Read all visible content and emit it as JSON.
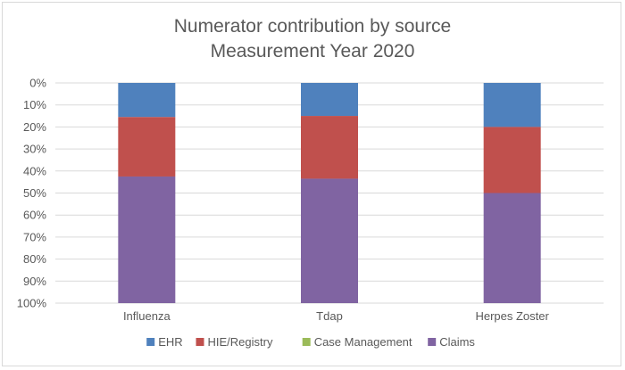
{
  "chart_data": {
    "type": "bar",
    "stacked": true,
    "percent_axis_reversed": true,
    "title_lines": [
      "Numerator contribution by source",
      "Measurement Year 2020"
    ],
    "categories": [
      "Influenza",
      "Tdap",
      "Herpes Zoster"
    ],
    "y_ticks": [
      "0%",
      "10%",
      "20%",
      "30%",
      "40%",
      "50%",
      "60%",
      "70%",
      "80%",
      "90%",
      "100%"
    ],
    "ylim": [
      0,
      100
    ],
    "grid": true,
    "legend_position": "bottom",
    "series": [
      {
        "name": "EHR",
        "color": "#4f81bd",
        "values": [
          15.5,
          15,
          20
        ]
      },
      {
        "name": "HIE/Registry",
        "color": "#c0504d",
        "values": [
          27,
          28.5,
          30
        ]
      },
      {
        "name": "Case Management",
        "color": "#9bbb59",
        "values": [
          0,
          0,
          0
        ]
      },
      {
        "name": "Claims",
        "color": "#8064a2",
        "values": [
          57.5,
          56.5,
          50
        ]
      }
    ]
  }
}
